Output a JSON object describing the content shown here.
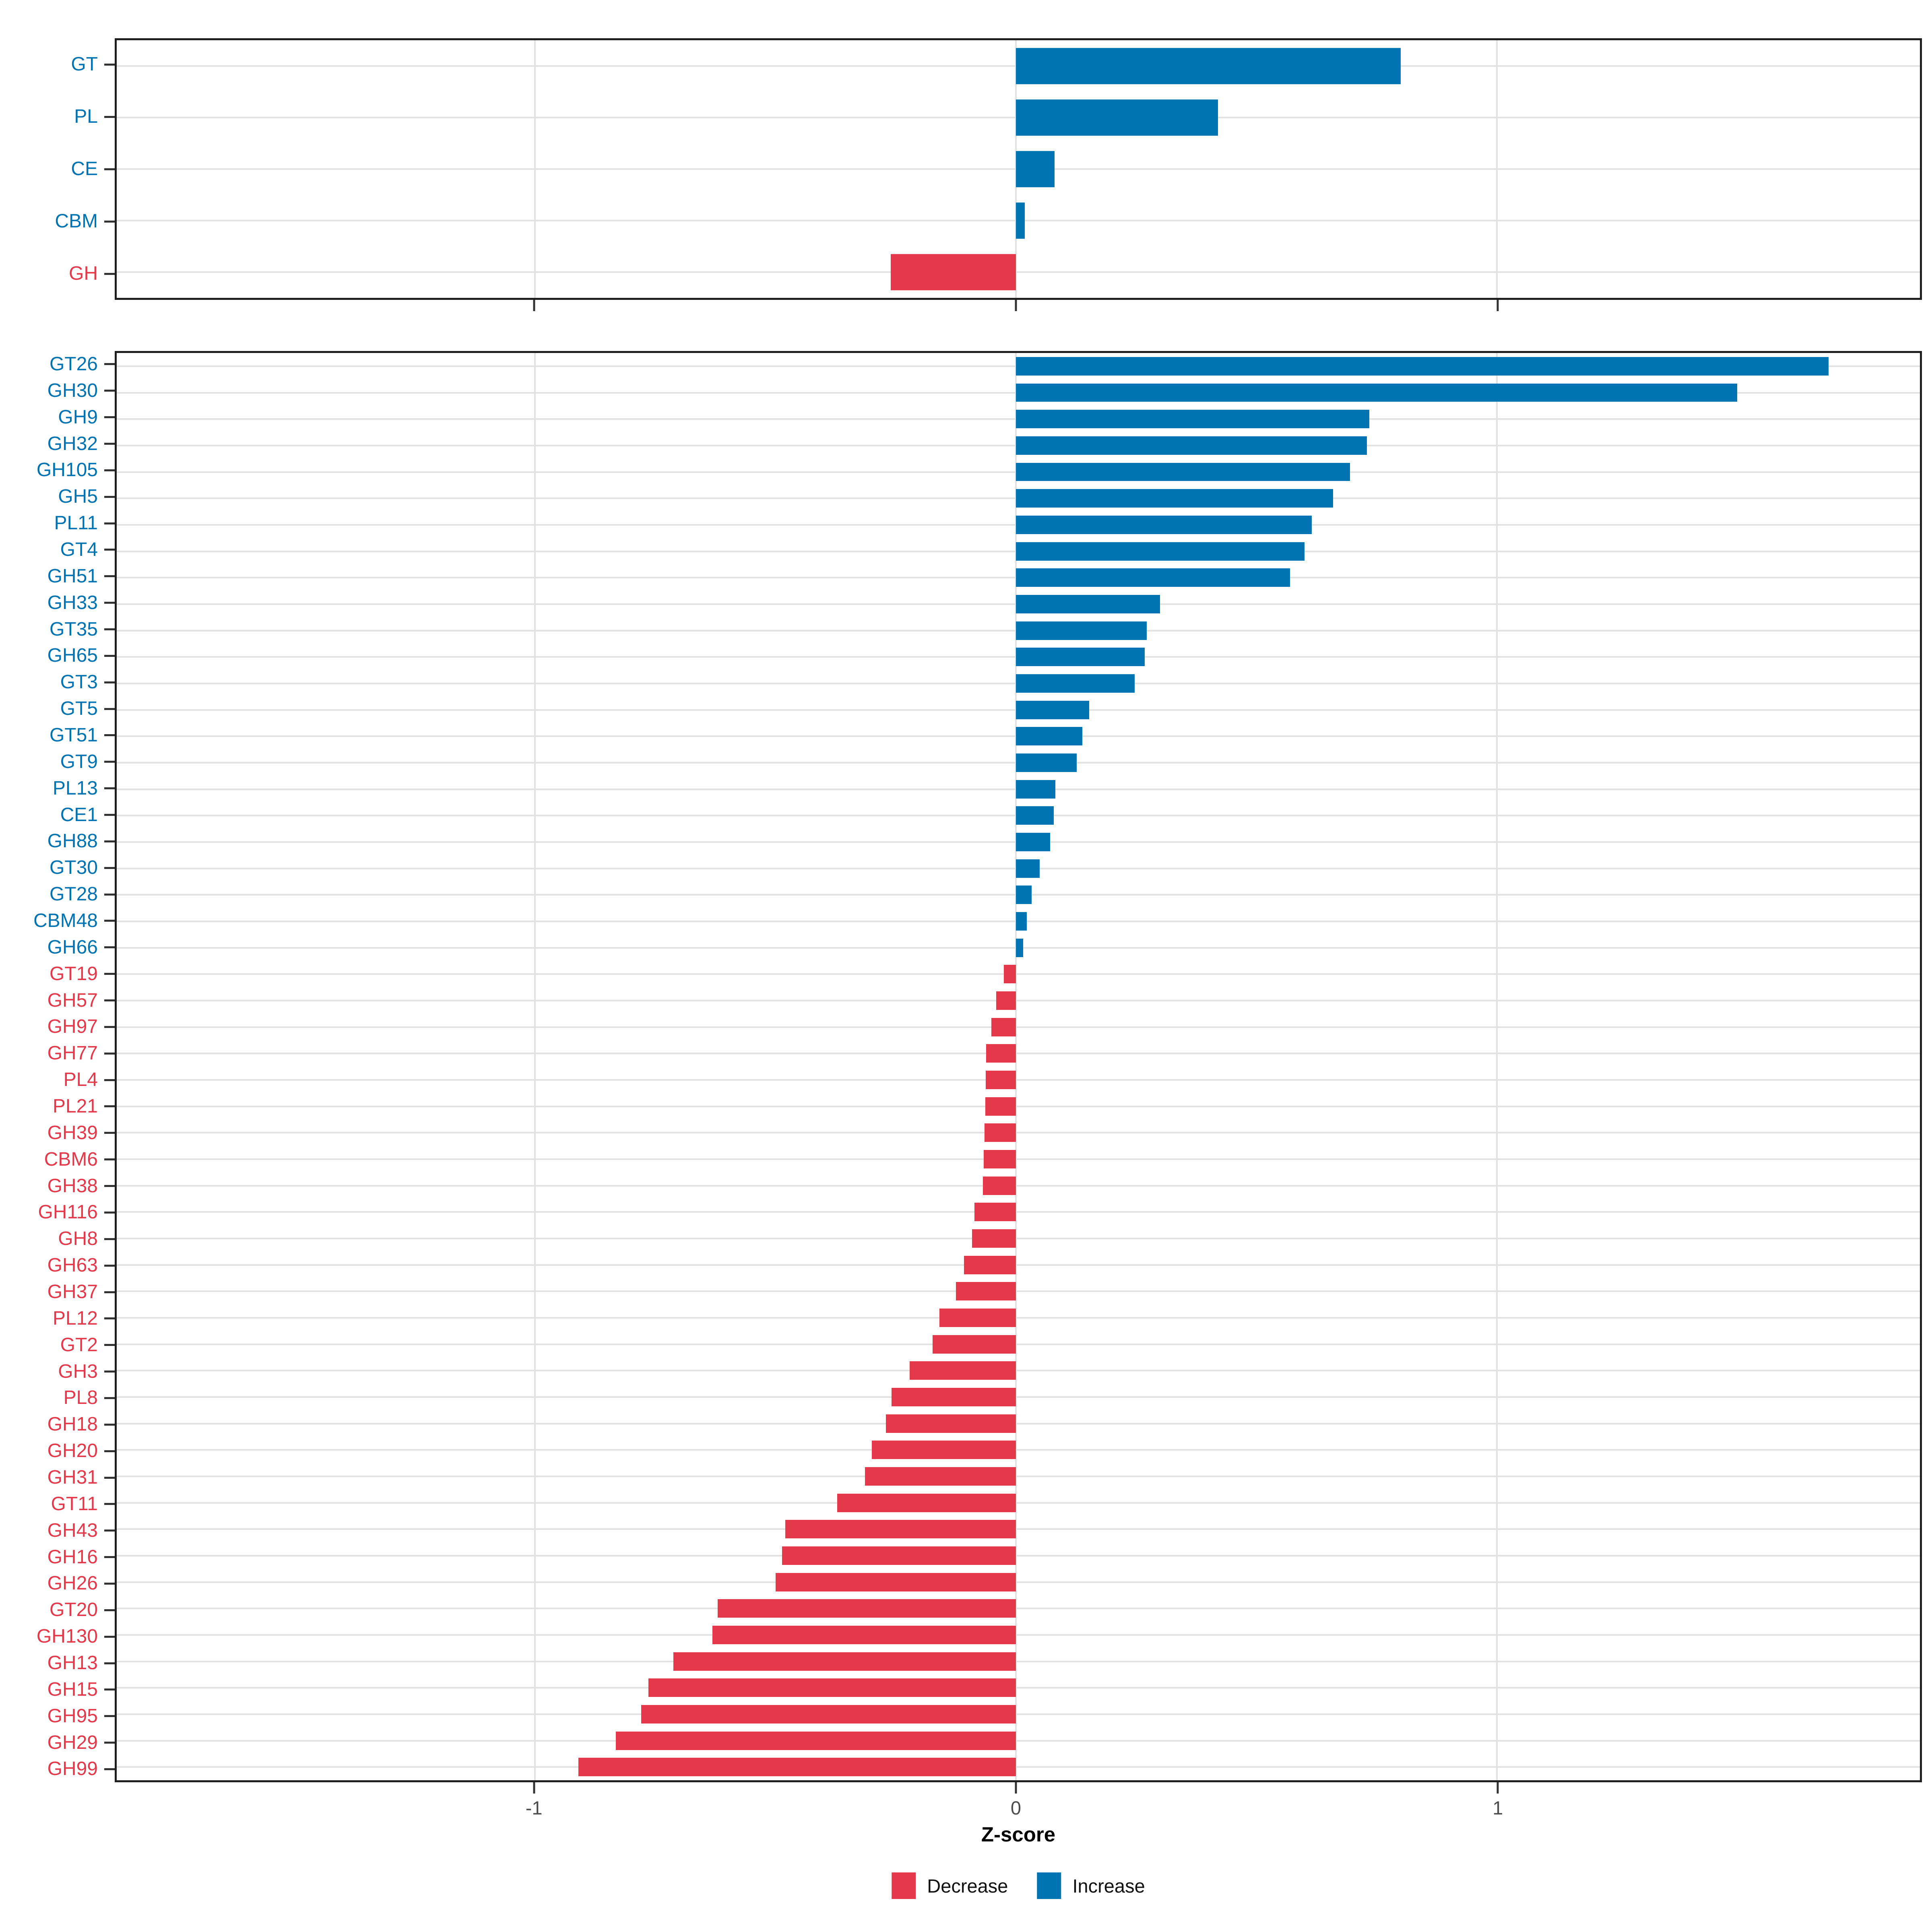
{
  "axis": {
    "xlabel": "Z-score",
    "tick_values": [
      -1,
      0,
      1
    ],
    "tick_labels": [
      "-1",
      "0",
      "1"
    ],
    "xlim": [
      -1.87,
      1.88
    ]
  },
  "legend": {
    "items": [
      {
        "label": "Decrease",
        "color": "#E4394B"
      },
      {
        "label": "Increase",
        "color": "#0073B3"
      }
    ]
  },
  "colors": {
    "increase": "#0073B3",
    "decrease": "#E4394B",
    "grid": "#E2E2E2",
    "panel_border": "#1F1F1F",
    "tick_text": "#4D4D4D"
  },
  "chart_data": [
    {
      "type": "bar",
      "orientation": "horizontal",
      "title": "",
      "xlabel": "",
      "xlim": [
        -1.87,
        1.88
      ],
      "x_ticks": [
        -1,
        0,
        1
      ],
      "grid": "major",
      "categories": [
        "GT",
        "PL",
        "CE",
        "CBM",
        "GH"
      ],
      "values": [
        0.8,
        0.42,
        0.08,
        0.018,
        -0.26
      ]
    },
    {
      "type": "bar",
      "orientation": "horizontal",
      "title": "",
      "xlabel": "Z-score",
      "xlim": [
        -1.87,
        1.88
      ],
      "x_ticks": [
        -1,
        0,
        1
      ],
      "grid": "major",
      "categories": [
        "GT26",
        "GH30",
        "GH9",
        "GH32",
        "GH105",
        "GH5",
        "PL11",
        "GT4",
        "GH51",
        "GH33",
        "GT35",
        "GH65",
        "GT3",
        "GT5",
        "GT51",
        "GT9",
        "PL13",
        "CE1",
        "GH88",
        "GT30",
        "GT28",
        "CBM48",
        "GH66",
        "GT19",
        "GH57",
        "GH97",
        "GH77",
        "PL4",
        "PL21",
        "GH39",
        "CBM6",
        "GH38",
        "GH116",
        "GH8",
        "GH63",
        "GH37",
        "PL12",
        "GT2",
        "GH3",
        "PL8",
        "GH18",
        "GH20",
        "GH31",
        "GT11",
        "GH43",
        "GH16",
        "GH26",
        "GT20",
        "GH130",
        "GH13",
        "GH15",
        "GH95",
        "GH29",
        "GH99"
      ],
      "values": [
        1.69,
        1.5,
        0.735,
        0.73,
        0.695,
        0.66,
        0.615,
        0.6,
        0.57,
        0.3,
        0.272,
        0.268,
        0.247,
        0.152,
        0.138,
        0.126,
        0.082,
        0.079,
        0.071,
        0.049,
        0.033,
        0.023,
        0.015,
        -0.025,
        -0.041,
        -0.051,
        -0.062,
        -0.063,
        -0.064,
        -0.065,
        -0.067,
        -0.069,
        -0.086,
        -0.091,
        -0.108,
        -0.125,
        -0.159,
        -0.173,
        -0.221,
        -0.259,
        -0.27,
        -0.3,
        -0.314,
        -0.372,
        -0.48,
        -0.486,
        -0.5,
        -0.62,
        -0.631,
        -0.712,
        -0.764,
        -0.779,
        -0.832,
        -0.91
      ]
    }
  ]
}
